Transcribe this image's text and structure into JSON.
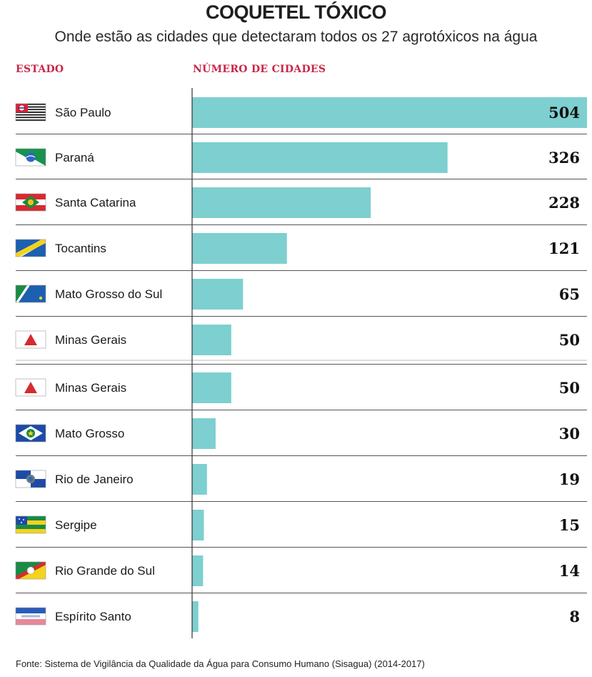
{
  "header": {
    "title": "COQUETEL TÓXICO",
    "subtitle": "Onde estão as cidades que detectaram todos os 27 agrotóxicos na água",
    "col_state": "ESTADO",
    "col_count": "NÚMERO DE CIDADES"
  },
  "footer": {
    "source": "Fonte: Sistema de Vigilância da Qualidade da Água para Consumo Humano (Sisagua) (2014-2017)"
  },
  "colors": {
    "bar": "#7ecfcf",
    "separator": "#555555",
    "axis": "#333333",
    "header_accent": "#c8284a"
  },
  "chart_data": {
    "type": "bar",
    "orientation": "horizontal",
    "title": "COQUETEL TÓXICO",
    "subtitle": "Onde estão as cidades que detectaram todos os 27 agrotóxicos na água",
    "xlabel": "NÚMERO DE CIDADES",
    "ylabel": "ESTADO",
    "xlim": [
      0,
      504
    ],
    "grid": false,
    "legend": "none",
    "categories": [
      "São Paulo",
      "Paraná",
      "Santa Catarina",
      "Tocantins",
      "Mato Grosso do Sul",
      "Minas Gerais",
      "Minas Gerais",
      "Mato Grosso",
      "Rio de Janeiro",
      "Sergipe",
      "Rio Grande do Sul",
      "Espírito Santo"
    ],
    "values": [
      504,
      326,
      228,
      121,
      65,
      50,
      50,
      30,
      19,
      15,
      14,
      8
    ],
    "value_labels": [
      "504",
      "326",
      "228",
      "121",
      "65",
      "50",
      "50",
      "30",
      "19",
      "15",
      "14",
      "8"
    ],
    "flag_icons": [
      "sao-paulo-flag-icon",
      "parana-flag-icon",
      "santa-catarina-flag-icon",
      "tocantins-flag-icon",
      "mato-grosso-do-sul-flag-icon",
      "minas-gerais-flag-icon",
      "minas-gerais-flag-icon",
      "mato-grosso-flag-icon",
      "rio-de-janeiro-flag-icon",
      "sergipe-flag-icon",
      "rio-grande-do-sul-flag-icon",
      "espirito-santo-flag-icon"
    ]
  }
}
